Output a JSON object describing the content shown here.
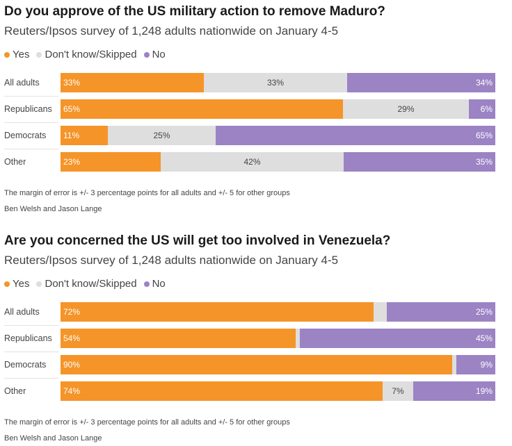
{
  "colors": {
    "yes": "#f59428",
    "dontknow": "#dedede",
    "no": "#9b83c4"
  },
  "legend": [
    {
      "key": "yes",
      "label": "Yes"
    },
    {
      "key": "dontknow",
      "label": "Don't know/Skipped"
    },
    {
      "key": "no",
      "label": "No"
    }
  ],
  "chart_data": [
    {
      "type": "bar",
      "orientation": "horizontal-stacked-100",
      "title": "Do you approve of the US military action to remove Maduro?",
      "subtitle": "Reuters/Ipsos survey of 1,248 adults nationwide on January 4-5",
      "categories": [
        "All adults",
        "Republicans",
        "Democrats",
        "Other"
      ],
      "series": [
        {
          "name": "Yes",
          "values": [
            33,
            65,
            11,
            23
          ],
          "labels": [
            "33%",
            "65%",
            "11%",
            "23%"
          ]
        },
        {
          "name": "Don't know/Skipped",
          "values": [
            33,
            29,
            25,
            42
          ],
          "labels": [
            "33%",
            "29%",
            "25%",
            "42%"
          ]
        },
        {
          "name": "No",
          "values": [
            34,
            6,
            65,
            35
          ],
          "labels": [
            "34%",
            "6%",
            "65%",
            "35%"
          ]
        }
      ],
      "note": "The margin of error is +/- 3 percentage points for all adults and +/- 5 for other groups",
      "credit": "Ben Welsh and Jason Lange"
    },
    {
      "type": "bar",
      "orientation": "horizontal-stacked-100",
      "title": "Are you concerned the US will get too involved in Venezuela?",
      "subtitle": "Reuters/Ipsos survey of 1,248 adults nationwide on January 4-5",
      "categories": [
        "All adults",
        "Republicans",
        "Democrats",
        "Other"
      ],
      "series": [
        {
          "name": "Yes",
          "values": [
            72,
            54,
            90,
            74
          ],
          "labels": [
            "72%",
            "54%",
            "90%",
            "74%"
          ]
        },
        {
          "name": "Don't know/Skipped",
          "values": [
            3,
            1,
            1,
            7
          ],
          "labels": [
            "",
            "",
            "",
            "7%"
          ]
        },
        {
          "name": "No",
          "values": [
            25,
            45,
            9,
            19
          ],
          "labels": [
            "25%",
            "45%",
            "9%",
            "19%"
          ]
        }
      ],
      "note": "The margin of error is +/- 3 percentage points for all adults and +/- 5 for other groups",
      "credit": "Ben Welsh and Jason Lange"
    }
  ]
}
